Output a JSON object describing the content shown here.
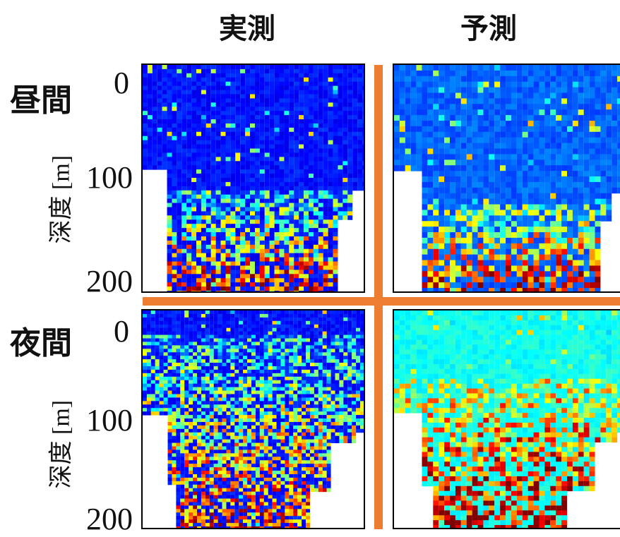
{
  "column_titles": [
    "実測",
    "予測"
  ],
  "row_labels": [
    "昼間",
    "夜間"
  ],
  "y_tick_labels": [
    "0",
    "100",
    "200"
  ],
  "y_axis_label": "深度 [m]",
  "divider_color": "#ED7D31",
  "chart_data": [
    {
      "type": "heatmap",
      "column": "実測",
      "row": "昼間",
      "ylabel": "深度 [m]",
      "yticks": [
        0,
        100,
        200
      ],
      "ylim": [
        200,
        0
      ],
      "colormap": "jet",
      "background_color": "#00008B"
    },
    {
      "type": "heatmap",
      "column": "予測",
      "row": "昼間",
      "ylabel": "",
      "yticks": [
        0,
        100,
        200
      ],
      "ylim": [
        200,
        0
      ],
      "colormap": "jet",
      "background_color": "#0A1FC0"
    },
    {
      "type": "heatmap",
      "column": "実測",
      "row": "夜間",
      "ylabel": "深度 [m]",
      "yticks": [
        0,
        100,
        200
      ],
      "ylim": [
        200,
        0
      ],
      "colormap": "jet",
      "background_color": "#00008B"
    },
    {
      "type": "heatmap",
      "column": "予測",
      "row": "夜間",
      "ylabel": "",
      "yticks": [
        0,
        100,
        200
      ],
      "ylim": [
        200,
        0
      ],
      "colormap": "jet",
      "background_color": "#1E6FE0"
    }
  ]
}
